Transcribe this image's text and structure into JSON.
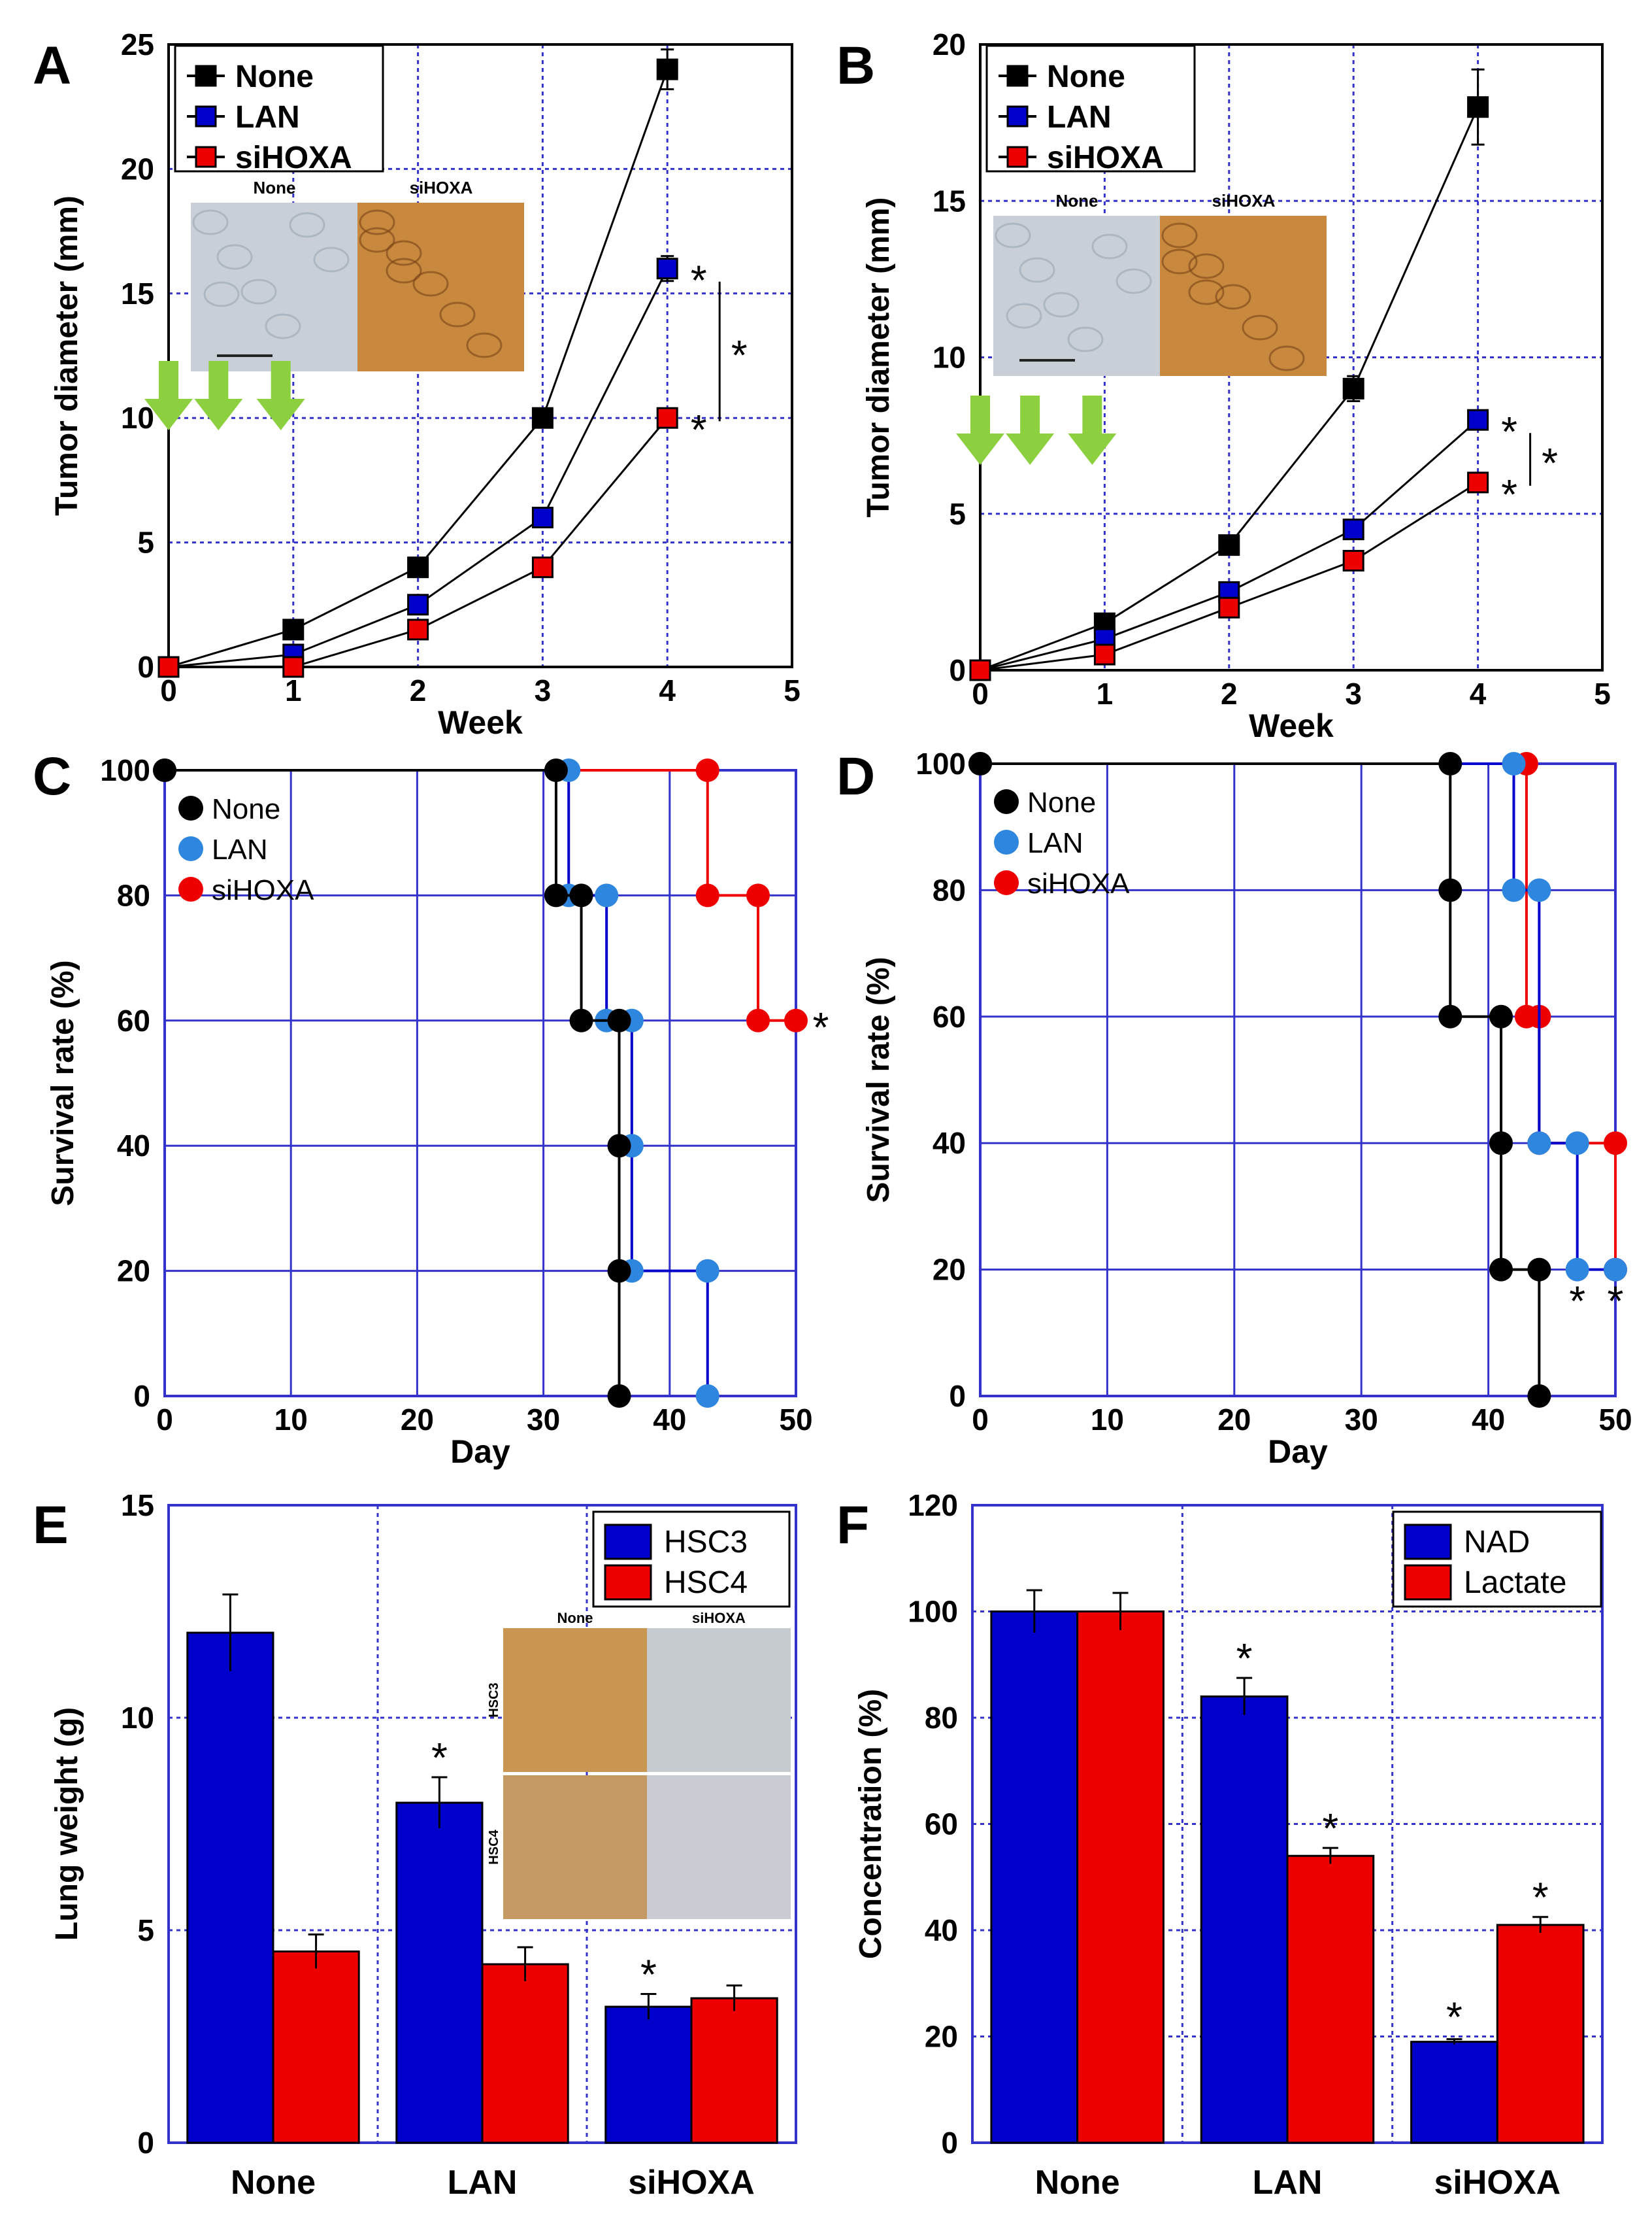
{
  "colors": {
    "none": "#000000",
    "lan": "#0000cc",
    "lan_light": "#2e86de",
    "sihoxa": "#ee0000",
    "grid": "#3333cc",
    "arrow": "#8ccf3f"
  },
  "chart_data": [
    {
      "panel": "A",
      "type": "line",
      "title": "",
      "xlabel": "Week",
      "ylabel": "Tumor diameter (mm)",
      "xlim": [
        0,
        5
      ],
      "ylim": [
        0,
        25
      ],
      "xticks": [
        0,
        1,
        2,
        3,
        4,
        5
      ],
      "yticks": [
        0,
        5,
        10,
        15,
        20,
        25
      ],
      "x": [
        0,
        1,
        2,
        3,
        4
      ],
      "series": [
        {
          "name": "None",
          "key": "none",
          "values": [
            0,
            1.5,
            4,
            10,
            24
          ],
          "errors": [
            0,
            0.2,
            0,
            0.3,
            0.8
          ]
        },
        {
          "name": "LAN",
          "key": "lan",
          "values": [
            0,
            0.5,
            2.5,
            6,
            16
          ],
          "errors": [
            0,
            0.2,
            0,
            0,
            0.5
          ]
        },
        {
          "name": "siHOXA",
          "key": "sihoxa",
          "values": [
            0,
            0,
            1.5,
            4,
            10
          ],
          "errors": [
            0,
            0,
            0,
            0,
            0.3
          ]
        }
      ],
      "inset_labels": [
        "None",
        "siHOXA"
      ],
      "annotations": [
        "*",
        "*",
        "*"
      ]
    },
    {
      "panel": "B",
      "type": "line",
      "title": "",
      "xlabel": "Week",
      "ylabel": "Tumor diameter (mm)",
      "xlim": [
        0,
        5
      ],
      "ylim": [
        0,
        20
      ],
      "xticks": [
        0,
        1,
        2,
        3,
        4,
        5
      ],
      "yticks": [
        0,
        5,
        10,
        15,
        20
      ],
      "x": [
        0,
        1,
        2,
        3,
        4
      ],
      "series": [
        {
          "name": "None",
          "key": "none",
          "values": [
            0,
            1.5,
            4,
            9,
            18
          ],
          "errors": [
            0,
            0.2,
            0,
            0.4,
            1.2
          ]
        },
        {
          "name": "LAN",
          "key": "lan",
          "values": [
            0,
            1,
            2.5,
            4.5,
            8
          ],
          "errors": [
            0,
            0,
            0,
            0,
            0.3
          ]
        },
        {
          "name": "siHOXA",
          "key": "sihoxa",
          "values": [
            0,
            0.5,
            2,
            3.5,
            6
          ],
          "errors": [
            0,
            0,
            0,
            0,
            0
          ]
        }
      ],
      "inset_labels": [
        "None",
        "siHOXA"
      ],
      "annotations": [
        "*",
        "*",
        "*"
      ]
    },
    {
      "panel": "C",
      "type": "line",
      "title": "",
      "xlabel": "Day",
      "ylabel": "Survival rate (%)",
      "xlim": [
        0,
        50
      ],
      "ylim": [
        0,
        100
      ],
      "xticks": [
        0,
        10,
        20,
        30,
        40,
        50
      ],
      "yticks": [
        0,
        20,
        40,
        60,
        80,
        100
      ],
      "series": [
        {
          "name": "None",
          "key": "none",
          "x": [
            0,
            31,
            31,
            33,
            33,
            36,
            36,
            36,
            36
          ],
          "values": [
            100,
            100,
            80,
            80,
            60,
            60,
            40,
            20,
            0
          ]
        },
        {
          "name": "LAN",
          "key": "lan_light",
          "x": [
            0,
            32,
            32,
            35,
            35,
            37,
            37,
            37,
            43,
            43
          ],
          "values": [
            100,
            100,
            80,
            80,
            60,
            60,
            40,
            20,
            20,
            0
          ]
        },
        {
          "name": "siHOXA",
          "key": "sihoxa",
          "x": [
            0,
            43,
            43,
            47,
            47,
            50
          ],
          "values": [
            100,
            100,
            80,
            80,
            60,
            60
          ]
        }
      ],
      "annotations": [
        "*"
      ]
    },
    {
      "panel": "D",
      "type": "line",
      "title": "",
      "xlabel": "Day",
      "ylabel": "Survival rate (%)",
      "xlim": [
        0,
        50
      ],
      "ylim": [
        0,
        100
      ],
      "xticks": [
        0,
        10,
        20,
        30,
        40,
        50
      ],
      "yticks": [
        0,
        20,
        40,
        60,
        80,
        100
      ],
      "series": [
        {
          "name": "None",
          "key": "none",
          "x": [
            0,
            37,
            37,
            37,
            41,
            41,
            41,
            44,
            44
          ],
          "values": [
            100,
            100,
            80,
            60,
            60,
            40,
            20,
            20,
            0
          ]
        },
        {
          "name": "LAN",
          "key": "lan_light",
          "x": [
            0,
            42,
            42,
            44,
            44,
            47,
            47,
            50
          ],
          "values": [
            100,
            100,
            80,
            80,
            40,
            40,
            20,
            20
          ]
        },
        {
          "name": "siHOXA",
          "key": "sihoxa",
          "x": [
            0,
            43,
            43,
            44,
            44,
            50,
            50
          ],
          "values": [
            100,
            100,
            60,
            60,
            40,
            40,
            20
          ]
        }
      ],
      "annotations": [
        "*",
        "*"
      ]
    },
    {
      "panel": "E",
      "type": "bar",
      "title": "",
      "xlabel": "",
      "ylabel": "Lung weight (g)",
      "ylim": [
        0,
        15
      ],
      "yticks": [
        0,
        5,
        10,
        15
      ],
      "categories": [
        "None",
        "LAN",
        "siHOXA"
      ],
      "series": [
        {
          "name": "HSC3",
          "key": "lan",
          "values": [
            12,
            8,
            3.2
          ],
          "errors": [
            0.9,
            0.6,
            0.3
          ]
        },
        {
          "name": "HSC4",
          "key": "sihoxa",
          "values": [
            4.5,
            4.2,
            3.4
          ],
          "errors": [
            0.4,
            0.4,
            0.3
          ]
        }
      ],
      "inset_labels": [
        "None",
        "siHOXA",
        "HSC3",
        "HSC4"
      ],
      "annotations": [
        "*",
        "*"
      ]
    },
    {
      "panel": "F",
      "type": "bar",
      "title": "",
      "xlabel": "",
      "ylabel": "Concentration (%)",
      "ylim": [
        0,
        120
      ],
      "yticks": [
        0,
        20,
        40,
        60,
        80,
        100,
        120
      ],
      "categories": [
        "None",
        "LAN",
        "siHOXA"
      ],
      "series": [
        {
          "name": "NAD",
          "key": "lan",
          "values": [
            100,
            84,
            19
          ],
          "errors": [
            4,
            3.5,
            0.5
          ]
        },
        {
          "name": "Lactate",
          "key": "sihoxa",
          "values": [
            100,
            54,
            41
          ],
          "errors": [
            3.5,
            1.5,
            1.5
          ]
        }
      ],
      "annotations": [
        "*",
        "*",
        "*",
        "*"
      ]
    }
  ]
}
